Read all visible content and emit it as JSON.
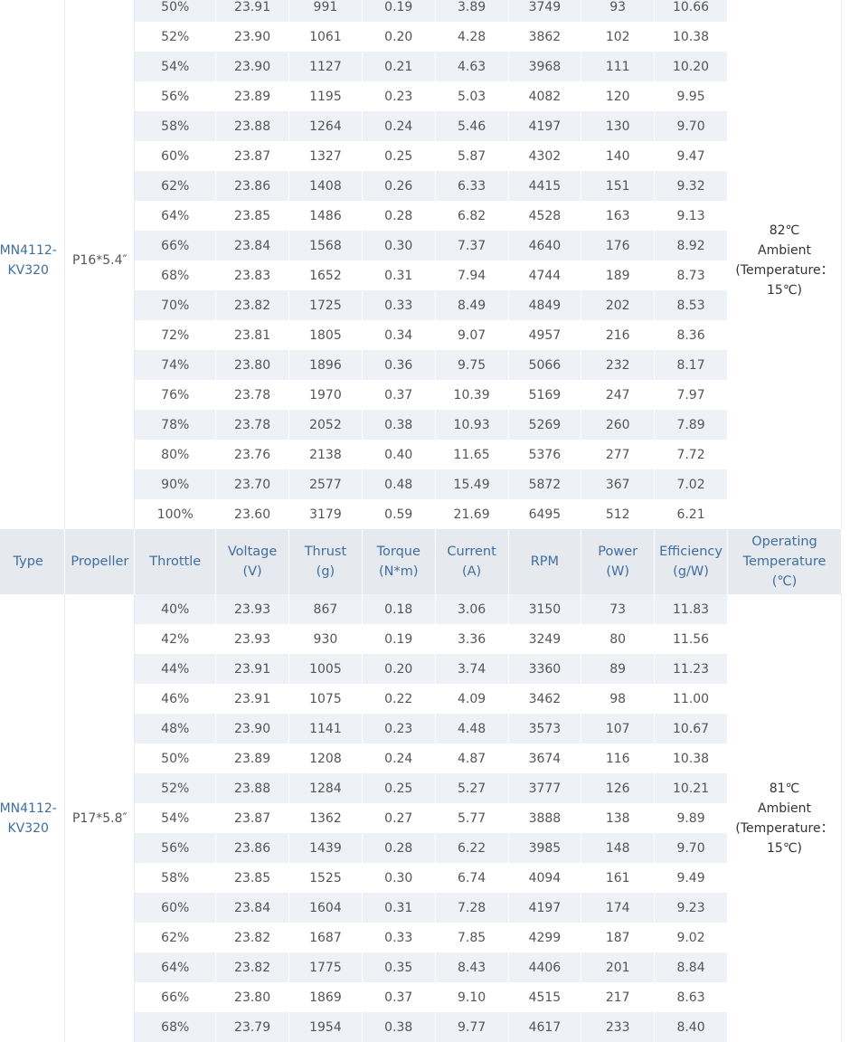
{
  "header": {
    "type": "Type",
    "propeller": "Propeller",
    "throttle": "Throttle",
    "voltage": [
      "Voltage",
      "(V)"
    ],
    "thrust": [
      "Thrust",
      "(g)"
    ],
    "torque": [
      "Torque",
      "(N*m)"
    ],
    "current": [
      "Current",
      "(A)"
    ],
    "rpm": "RPM",
    "power": [
      "Power",
      "(W)"
    ],
    "efficiency": [
      "Efficiency",
      "(g/W)"
    ],
    "operating_temp": [
      "Operating",
      "Temperature",
      "(℃)"
    ]
  },
  "groups": [
    {
      "type": [
        "MN4112-",
        "KV320"
      ],
      "propeller": "P16*5.4″",
      "temperature": [
        "82℃",
        "Ambient",
        "(Temperature：",
        "15℃)"
      ],
      "rows": [
        [
          "50%",
          "23.91",
          "991",
          "0.19",
          "3.89",
          "3749",
          "93",
          "10.66"
        ],
        [
          "52%",
          "23.90",
          "1061",
          "0.20",
          "4.28",
          "3862",
          "102",
          "10.38"
        ],
        [
          "54%",
          "23.90",
          "1127",
          "0.21",
          "4.63",
          "3968",
          "111",
          "10.20"
        ],
        [
          "56%",
          "23.89",
          "1195",
          "0.23",
          "5.03",
          "4082",
          "120",
          "9.95"
        ],
        [
          "58%",
          "23.88",
          "1264",
          "0.24",
          "5.46",
          "4197",
          "130",
          "9.70"
        ],
        [
          "60%",
          "23.87",
          "1327",
          "0.25",
          "5.87",
          "4302",
          "140",
          "9.47"
        ],
        [
          "62%",
          "23.86",
          "1408",
          "0.26",
          "6.33",
          "4415",
          "151",
          "9.32"
        ],
        [
          "64%",
          "23.85",
          "1486",
          "0.28",
          "6.82",
          "4528",
          "163",
          "9.13"
        ],
        [
          "66%",
          "23.84",
          "1568",
          "0.30",
          "7.37",
          "4640",
          "176",
          "8.92"
        ],
        [
          "68%",
          "23.83",
          "1652",
          "0.31",
          "7.94",
          "4744",
          "189",
          "8.73"
        ],
        [
          "70%",
          "23.82",
          "1725",
          "0.33",
          "8.49",
          "4849",
          "202",
          "8.53"
        ],
        [
          "72%",
          "23.81",
          "1805",
          "0.34",
          "9.07",
          "4957",
          "216",
          "8.36"
        ],
        [
          "74%",
          "23.80",
          "1896",
          "0.36",
          "9.75",
          "5066",
          "232",
          "8.17"
        ],
        [
          "76%",
          "23.78",
          "1970",
          "0.37",
          "10.39",
          "5169",
          "247",
          "7.97"
        ],
        [
          "78%",
          "23.78",
          "2052",
          "0.38",
          "10.93",
          "5269",
          "260",
          "7.89"
        ],
        [
          "80%",
          "23.76",
          "2138",
          "0.40",
          "11.65",
          "5376",
          "277",
          "7.72"
        ],
        [
          "90%",
          "23.70",
          "2577",
          "0.48",
          "15.49",
          "5872",
          "367",
          "7.02"
        ],
        [
          "100%",
          "23.60",
          "3179",
          "0.59",
          "21.69",
          "6495",
          "512",
          "6.21"
        ]
      ]
    },
    {
      "type": [
        "MN4112-",
        "KV320"
      ],
      "propeller": "P17*5.8″",
      "temperature": [
        "81℃",
        "Ambient",
        "(Temperature：",
        "15℃)"
      ],
      "rows": [
        [
          "40%",
          "23.93",
          "867",
          "0.18",
          "3.06",
          "3150",
          "73",
          "11.83"
        ],
        [
          "42%",
          "23.93",
          "930",
          "0.19",
          "3.36",
          "3249",
          "80",
          "11.56"
        ],
        [
          "44%",
          "23.91",
          "1005",
          "0.20",
          "3.74",
          "3360",
          "89",
          "11.23"
        ],
        [
          "46%",
          "23.91",
          "1075",
          "0.22",
          "4.09",
          "3462",
          "98",
          "11.00"
        ],
        [
          "48%",
          "23.90",
          "1141",
          "0.23",
          "4.48",
          "3573",
          "107",
          "10.67"
        ],
        [
          "50%",
          "23.89",
          "1208",
          "0.24",
          "4.87",
          "3674",
          "116",
          "10.38"
        ],
        [
          "52%",
          "23.88",
          "1284",
          "0.25",
          "5.27",
          "3777",
          "126",
          "10.21"
        ],
        [
          "54%",
          "23.87",
          "1362",
          "0.27",
          "5.77",
          "3888",
          "138",
          "9.89"
        ],
        [
          "56%",
          "23.86",
          "1439",
          "0.28",
          "6.22",
          "3985",
          "148",
          "9.70"
        ],
        [
          "58%",
          "23.85",
          "1525",
          "0.30",
          "6.74",
          "4094",
          "161",
          "9.49"
        ],
        [
          "60%",
          "23.84",
          "1604",
          "0.31",
          "7.28",
          "4197",
          "174",
          "9.23"
        ],
        [
          "62%",
          "23.82",
          "1687",
          "0.33",
          "7.85",
          "4299",
          "187",
          "9.02"
        ],
        [
          "64%",
          "23.82",
          "1775",
          "0.35",
          "8.43",
          "4406",
          "201",
          "8.84"
        ],
        [
          "66%",
          "23.80",
          "1869",
          "0.37",
          "9.10",
          "4515",
          "217",
          "8.63"
        ],
        [
          "68%",
          "23.79",
          "1954",
          "0.38",
          "9.77",
          "4617",
          "233",
          "8.40"
        ]
      ]
    }
  ]
}
